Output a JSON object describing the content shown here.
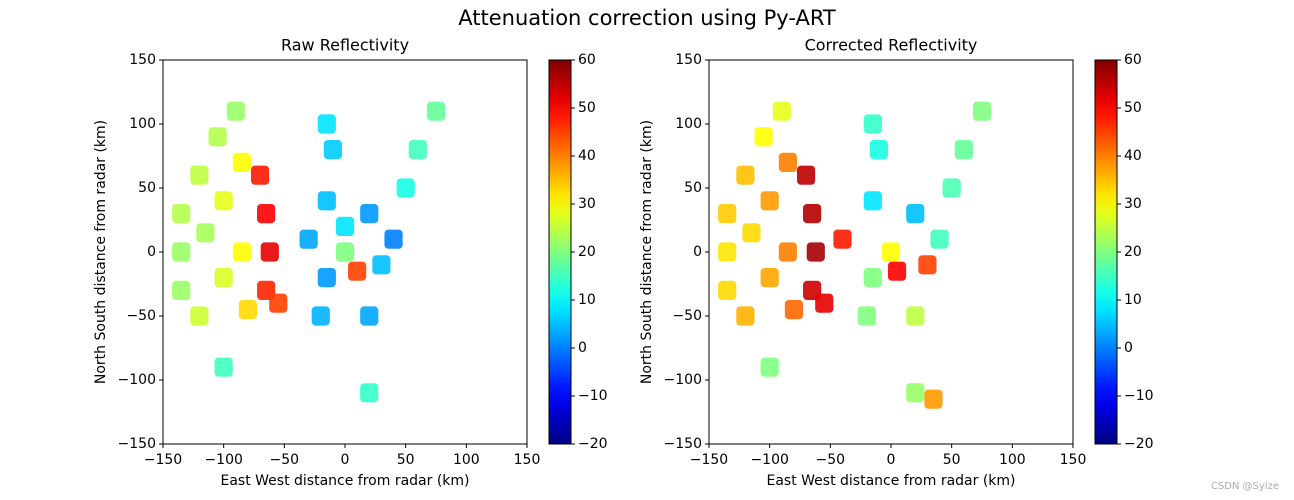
{
  "title": "Attenuation correction using Py-ART",
  "watermark": "CSDN @Syize",
  "chart_data": [
    {
      "type": "radar-ppi",
      "title": "Raw Reflectivity",
      "xlabel": "East West distance from radar (km)",
      "ylabel": "North South distance from radar (km)",
      "colormap": "jet",
      "x": [
        -135,
        -135,
        -135,
        -120,
        -120,
        -115,
        -105,
        -100,
        -100,
        -90,
        -85,
        -85,
        -80,
        -70,
        -65,
        -62,
        -65,
        -55,
        -30,
        -15,
        -15,
        0,
        0,
        10,
        20,
        30,
        40,
        20,
        -20,
        -10,
        -15,
        60,
        75,
        50,
        -100,
        20
      ],
      "y": [
        0,
        30,
        -30,
        60,
        -50,
        15,
        90,
        40,
        -20,
        110,
        70,
        0,
        -45,
        60,
        30,
        0,
        -30,
        -40,
        10,
        40,
        -20,
        0,
        20,
        -15,
        30,
        -10,
        10,
        -50,
        -50,
        80,
        100,
        80,
        110,
        50,
        -90,
        -110
      ],
      "values": [
        22,
        24,
        22,
        25,
        26,
        23,
        24,
        28,
        27,
        22,
        30,
        30,
        33,
        48,
        50,
        52,
        47,
        45,
        3,
        5,
        2,
        20,
        8,
        45,
        2,
        5,
        0,
        3,
        4,
        6,
        8,
        15,
        18,
        12,
        15,
        14
      ],
      "xlim": [
        -150,
        150
      ],
      "ylim": [
        -150,
        150
      ],
      "xticks": [
        {
          "value": -150,
          "label": "−150"
        },
        {
          "value": -100,
          "label": "−100"
        },
        {
          "value": -50,
          "label": "−50"
        },
        0,
        50,
        100,
        150
      ],
      "yticks": [
        {
          "value": -150,
          "label": "−150"
        },
        {
          "value": -100,
          "label": "−100"
        },
        {
          "value": -50,
          "label": "−50"
        },
        0,
        50,
        100,
        150
      ],
      "clim": [
        -20,
        60
      ],
      "cticks": [
        {
          "value": -20,
          "label": "−20"
        },
        {
          "value": -10,
          "label": "−10"
        },
        0,
        10,
        20,
        30,
        40,
        50,
        60
      ]
    },
    {
      "type": "radar-ppi",
      "title": "Corrected Reflectivity",
      "xlabel": "East West distance from radar (km)",
      "ylabel": "North South distance from radar (km)",
      "colormap": "jet",
      "x": [
        -135,
        -135,
        -135,
        -120,
        -120,
        -115,
        -105,
        -100,
        -100,
        -90,
        -85,
        -85,
        -80,
        -70,
        -65,
        -62,
        -65,
        -55,
        -40,
        -15,
        -15,
        0,
        5,
        30,
        20,
        40,
        20,
        -20,
        -10,
        -15,
        60,
        75,
        50,
        -100,
        20,
        35
      ],
      "y": [
        0,
        30,
        -30,
        60,
        -50,
        15,
        90,
        40,
        -20,
        110,
        70,
        0,
        -45,
        60,
        30,
        0,
        -30,
        -40,
        10,
        40,
        -20,
        0,
        -15,
        -10,
        30,
        10,
        -50,
        -50,
        80,
        100,
        80,
        110,
        50,
        -90,
        -110,
        -115
      ],
      "values": [
        32,
        34,
        33,
        35,
        36,
        33,
        30,
        38,
        37,
        28,
        40,
        40,
        42,
        55,
        56,
        57,
        54,
        52,
        48,
        8,
        20,
        30,
        50,
        45,
        5,
        15,
        25,
        20,
        12,
        14,
        18,
        20,
        16,
        20,
        22,
        38
      ],
      "xlim": [
        -150,
        150
      ],
      "ylim": [
        -150,
        150
      ],
      "xticks": [
        {
          "value": -150,
          "label": "−150"
        },
        {
          "value": -100,
          "label": "−100"
        },
        {
          "value": -50,
          "label": "−50"
        },
        0,
        50,
        100,
        150
      ],
      "yticks": [
        {
          "value": -150,
          "label": "−150"
        },
        {
          "value": -100,
          "label": "−100"
        },
        {
          "value": -50,
          "label": "−50"
        },
        0,
        50,
        100,
        150
      ],
      "clim": [
        -20,
        60
      ],
      "cticks": [
        {
          "value": -20,
          "label": "−20"
        },
        {
          "value": -10,
          "label": "−10"
        },
        0,
        10,
        20,
        30,
        40,
        50,
        60
      ]
    }
  ]
}
